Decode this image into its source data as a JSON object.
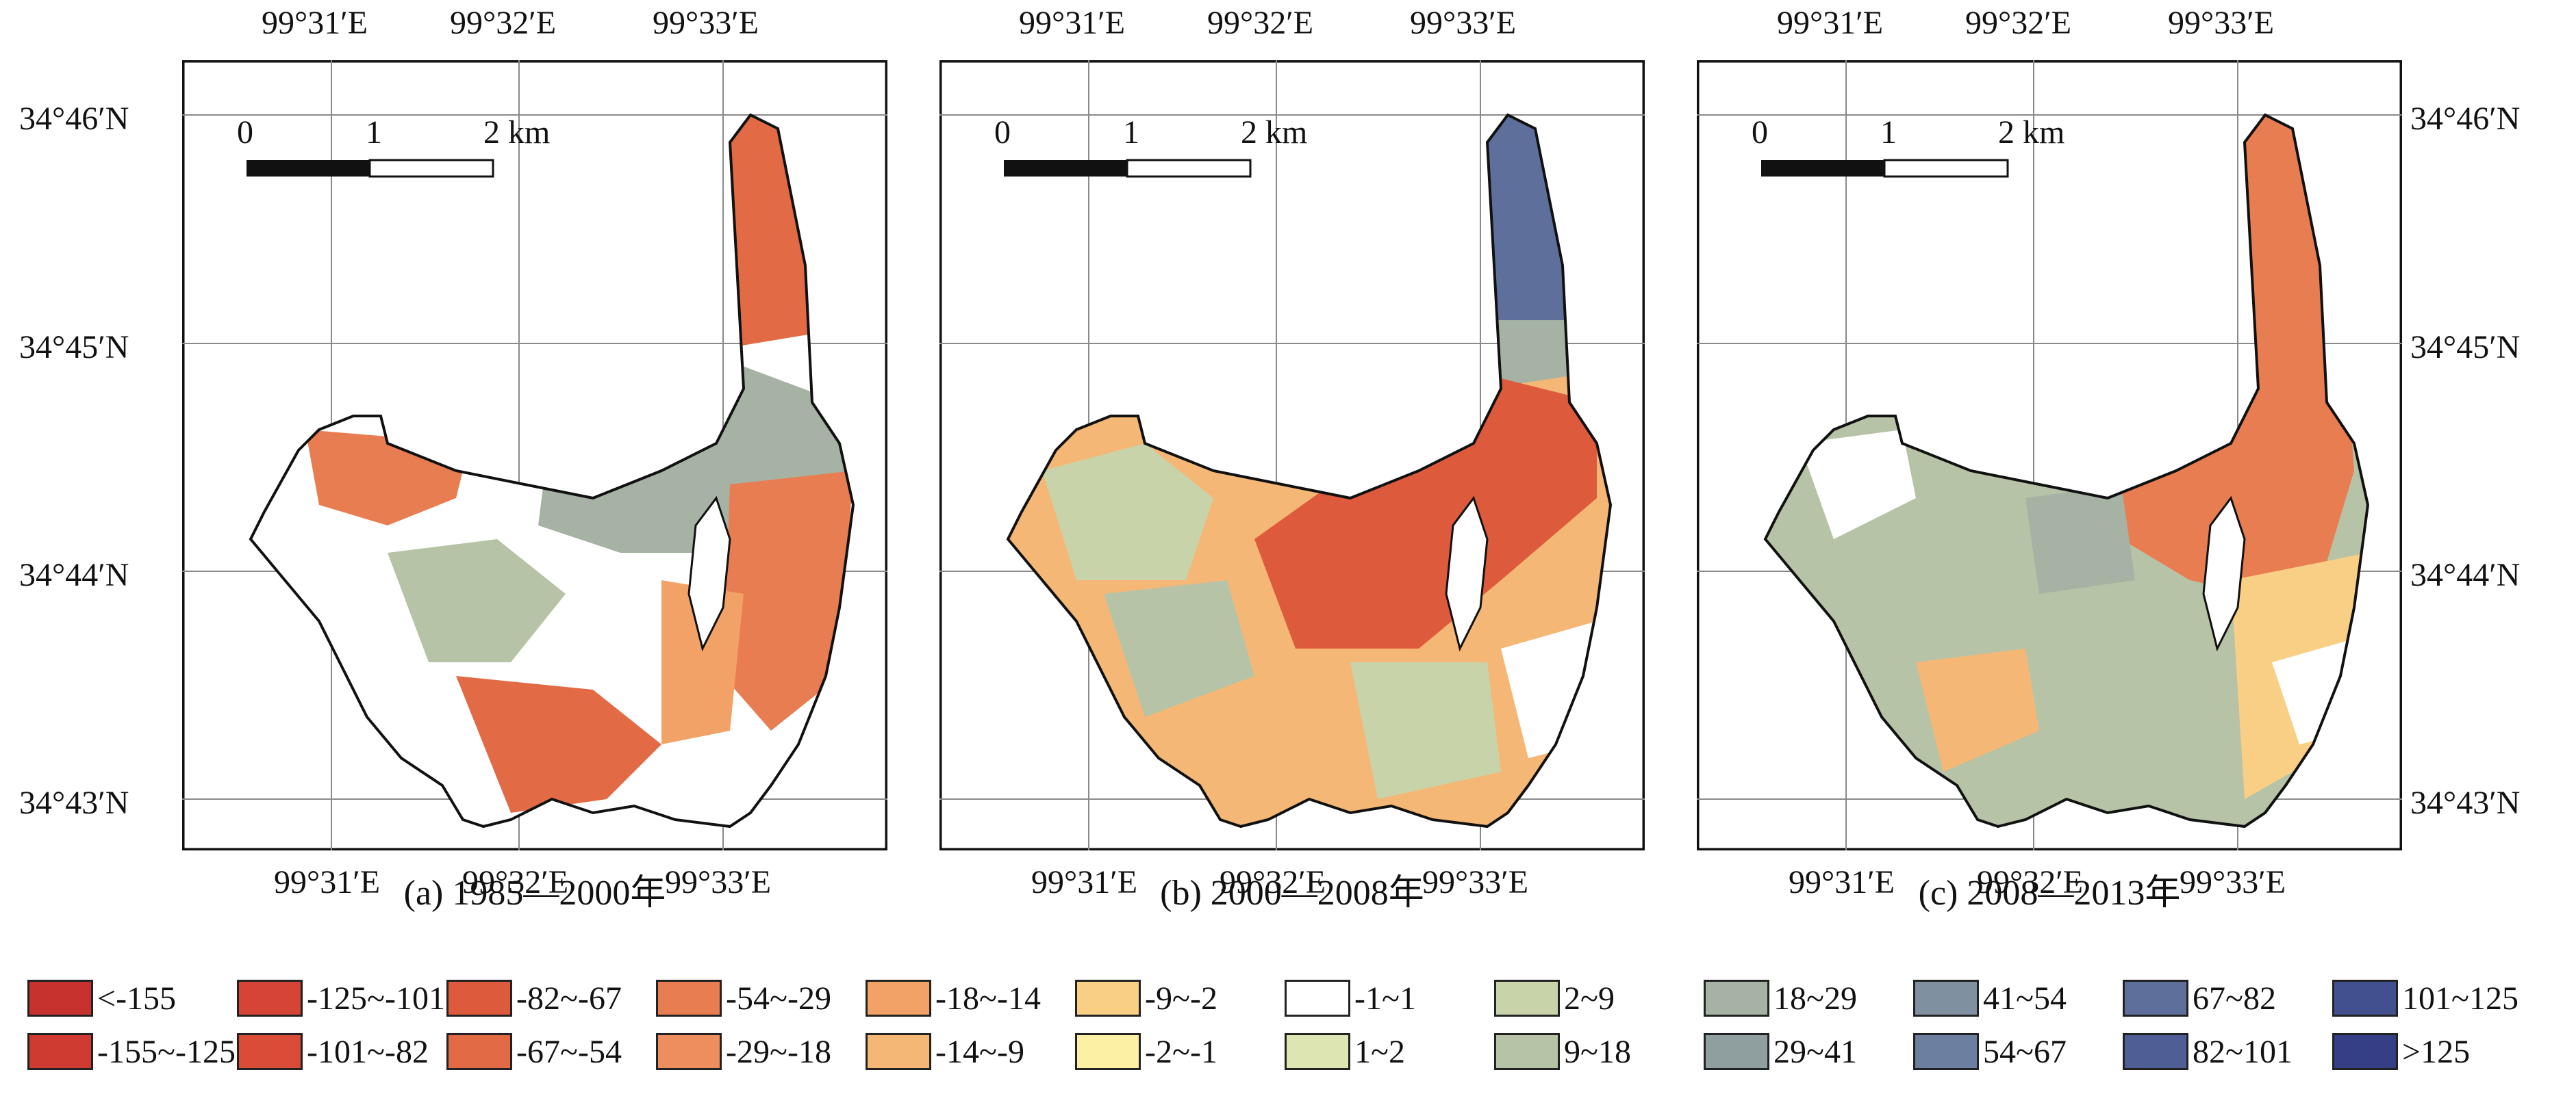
{
  "lat_labels": [
    "34°46′N",
    "34°45′N",
    "34°44′N",
    "34°43′N"
  ],
  "lon_labels": [
    "99°31′E",
    "99°32′E",
    "99°33′E"
  ],
  "scalebar": {
    "ticks": [
      "0",
      "1",
      "2 km"
    ]
  },
  "panels": [
    {
      "caption": "(a) 1985—2000年"
    },
    {
      "caption": "(b) 2000—2008年"
    },
    {
      "caption": "(c) 2008—2013年"
    }
  ],
  "legend": {
    "items": [
      {
        "label": "<-155",
        "color": "#c8322e"
      },
      {
        "label": "-155~-125",
        "color": "#cf3a31"
      },
      {
        "label": "-125~-101",
        "color": "#d54434"
      },
      {
        "label": "-101~-82",
        "color": "#da4c37"
      },
      {
        "label": "-82~-67",
        "color": "#de5a3c"
      },
      {
        "label": "-67~-54",
        "color": "#e26b46"
      },
      {
        "label": "-54~-29",
        "color": "#e87d52"
      },
      {
        "label": "-29~-18",
        "color": "#ee8d5d"
      },
      {
        "label": "-18~-14",
        "color": "#f2a266"
      },
      {
        "label": "-14~-9",
        "color": "#f5b775"
      },
      {
        "label": "-9~-2",
        "color": "#f9cf86"
      },
      {
        "label": "-2~-1",
        "color": "#fbf0a4"
      },
      {
        "label": "-1~1",
        "color": "#ffffff"
      },
      {
        "label": "1~2",
        "color": "#dde6b2"
      },
      {
        "label": "2~9",
        "color": "#c9d3aa"
      },
      {
        "label": "9~18",
        "color": "#b7c3a6"
      },
      {
        "label": "18~29",
        "color": "#a6b3a4"
      },
      {
        "label": "29~41",
        "color": "#8f9fa0"
      },
      {
        "label": "41~54",
        "color": "#7f90a0"
      },
      {
        "label": "54~67",
        "color": "#6c7fa0"
      },
      {
        "label": "67~82",
        "color": "#5e6f9b"
      },
      {
        "label": "82~101",
        "color": "#4f5f96"
      },
      {
        "label": "101~125",
        "color": "#43508f"
      },
      {
        "label": ">125",
        "color": "#353f85"
      }
    ]
  }
}
